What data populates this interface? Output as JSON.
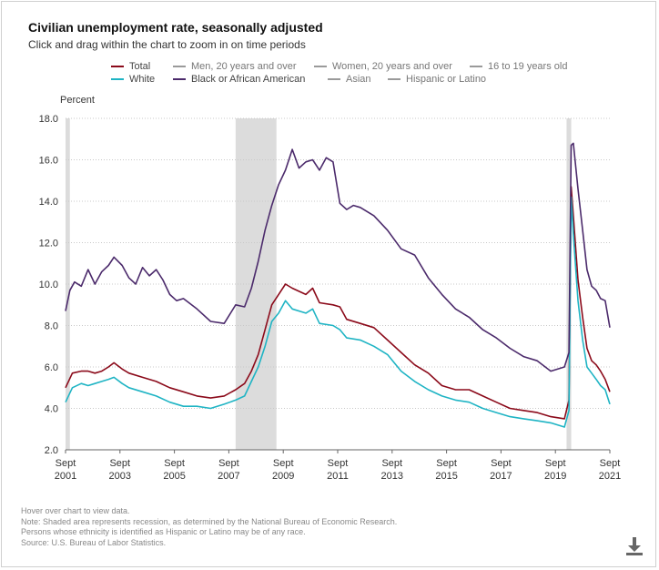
{
  "header": {
    "title": "Civilian unemployment rate, seasonally adjusted",
    "subtitle": "Click and drag within the chart to zoom in on time periods"
  },
  "legend": [
    {
      "label": "Total",
      "color": "#8b0a1a",
      "active": true
    },
    {
      "label": "Men, 20 years and over",
      "color": "#9a9a9a",
      "active": false
    },
    {
      "label": "Women, 20 years and over",
      "color": "#9a9a9a",
      "active": false
    },
    {
      "label": "16 to 19 years old",
      "color": "#9a9a9a",
      "active": false
    },
    {
      "label": "White",
      "color": "#1fb4c4",
      "active": true
    },
    {
      "label": "Black or African American",
      "color": "#4b2a6b",
      "active": true
    },
    {
      "label": "Asian",
      "color": "#9a9a9a",
      "active": false
    },
    {
      "label": "Hispanic or Latino",
      "color": "#9a9a9a",
      "active": false
    }
  ],
  "notes": {
    "line1": "Hover over chart to view data.",
    "line2": "Note: Shaded area represents recession, as determined by the National Bureau of Economic Research.",
    "line3": "Persons whose ethnicity is identified as Hispanic or Latino may be of any race.",
    "line4": "Source: U.S. Bureau of Labor Statistics."
  },
  "download_icon": "download-icon",
  "chart_data": {
    "type": "line",
    "ylabel": "Percent",
    "ylim": [
      2.0,
      18.0
    ],
    "xlim": [
      2001.67,
      2021.67
    ],
    "y_ticks": [
      "2.0",
      "4.0",
      "6.0",
      "8.0",
      "10.0",
      "12.0",
      "14.0",
      "16.0",
      "18.0"
    ],
    "x_ticks": [
      {
        "value": 2001.67,
        "line1": "Sept",
        "line2": "2001"
      },
      {
        "value": 2003.67,
        "line1": "Sept",
        "line2": "2003"
      },
      {
        "value": 2005.67,
        "line1": "Sept",
        "line2": "2005"
      },
      {
        "value": 2007.67,
        "line1": "Sept",
        "line2": "2007"
      },
      {
        "value": 2009.67,
        "line1": "Sept",
        "line2": "2009"
      },
      {
        "value": 2011.67,
        "line1": "Sept",
        "line2": "2011"
      },
      {
        "value": 2013.67,
        "line1": "Sept",
        "line2": "2013"
      },
      {
        "value": 2015.67,
        "line1": "Sept",
        "line2": "2015"
      },
      {
        "value": 2017.67,
        "line1": "Sept",
        "line2": "2017"
      },
      {
        "value": 2019.67,
        "line1": "Sept",
        "line2": "2019"
      },
      {
        "value": 2021.67,
        "line1": "Sept",
        "line2": "2021"
      }
    ],
    "recessions": [
      [
        2001.67,
        2001.83
      ],
      [
        2007.92,
        2009.42
      ],
      [
        2020.08,
        2020.25
      ]
    ],
    "grid": "horizontal dotted",
    "series": [
      {
        "name": "Total",
        "color": "#8b0a1a",
        "points": [
          [
            2001.67,
            5.0
          ],
          [
            2001.92,
            5.7
          ],
          [
            2002.25,
            5.8
          ],
          [
            2002.5,
            5.8
          ],
          [
            2002.75,
            5.7
          ],
          [
            2003.0,
            5.8
          ],
          [
            2003.25,
            6.0
          ],
          [
            2003.45,
            6.2
          ],
          [
            2003.75,
            5.9
          ],
          [
            2004.0,
            5.7
          ],
          [
            2004.5,
            5.5
          ],
          [
            2005.0,
            5.3
          ],
          [
            2005.5,
            5.0
          ],
          [
            2006.0,
            4.8
          ],
          [
            2006.5,
            4.6
          ],
          [
            2007.0,
            4.5
          ],
          [
            2007.5,
            4.6
          ],
          [
            2007.92,
            4.9
          ],
          [
            2008.25,
            5.2
          ],
          [
            2008.5,
            5.8
          ],
          [
            2008.75,
            6.6
          ],
          [
            2009.0,
            7.8
          ],
          [
            2009.25,
            9.0
          ],
          [
            2009.5,
            9.5
          ],
          [
            2009.75,
            10.0
          ],
          [
            2010.0,
            9.8
          ],
          [
            2010.5,
            9.5
          ],
          [
            2010.75,
            9.8
          ],
          [
            2011.0,
            9.1
          ],
          [
            2011.5,
            9.0
          ],
          [
            2011.75,
            8.9
          ],
          [
            2012.0,
            8.3
          ],
          [
            2012.5,
            8.1
          ],
          [
            2013.0,
            7.9
          ],
          [
            2013.5,
            7.3
          ],
          [
            2014.0,
            6.7
          ],
          [
            2014.5,
            6.1
          ],
          [
            2015.0,
            5.7
          ],
          [
            2015.5,
            5.1
          ],
          [
            2016.0,
            4.9
          ],
          [
            2016.5,
            4.9
          ],
          [
            2017.0,
            4.6
          ],
          [
            2017.5,
            4.3
          ],
          [
            2018.0,
            4.0
          ],
          [
            2018.5,
            3.9
          ],
          [
            2019.0,
            3.8
          ],
          [
            2019.5,
            3.6
          ],
          [
            2020.0,
            3.5
          ],
          [
            2020.17,
            4.4
          ],
          [
            2020.25,
            14.7
          ],
          [
            2020.33,
            13.3
          ],
          [
            2020.5,
            10.2
          ],
          [
            2020.67,
            8.4
          ],
          [
            2020.83,
            6.9
          ],
          [
            2021.0,
            6.3
          ],
          [
            2021.17,
            6.1
          ],
          [
            2021.33,
            5.8
          ],
          [
            2021.5,
            5.4
          ],
          [
            2021.67,
            4.8
          ]
        ]
      },
      {
        "name": "White",
        "color": "#1fb4c4",
        "points": [
          [
            2001.67,
            4.3
          ],
          [
            2001.92,
            5.0
          ],
          [
            2002.25,
            5.2
          ],
          [
            2002.5,
            5.1
          ],
          [
            2002.75,
            5.2
          ],
          [
            2003.0,
            5.3
          ],
          [
            2003.25,
            5.4
          ],
          [
            2003.45,
            5.5
          ],
          [
            2003.75,
            5.2
          ],
          [
            2004.0,
            5.0
          ],
          [
            2004.5,
            4.8
          ],
          [
            2005.0,
            4.6
          ],
          [
            2005.5,
            4.3
          ],
          [
            2006.0,
            4.1
          ],
          [
            2006.5,
            4.1
          ],
          [
            2007.0,
            4.0
          ],
          [
            2007.5,
            4.2
          ],
          [
            2007.92,
            4.4
          ],
          [
            2008.25,
            4.6
          ],
          [
            2008.5,
            5.3
          ],
          [
            2008.75,
            6.0
          ],
          [
            2009.0,
            7.0
          ],
          [
            2009.25,
            8.2
          ],
          [
            2009.5,
            8.6
          ],
          [
            2009.75,
            9.2
          ],
          [
            2010.0,
            8.8
          ],
          [
            2010.5,
            8.6
          ],
          [
            2010.75,
            8.8
          ],
          [
            2011.0,
            8.1
          ],
          [
            2011.5,
            8.0
          ],
          [
            2011.75,
            7.8
          ],
          [
            2012.0,
            7.4
          ],
          [
            2012.5,
            7.3
          ],
          [
            2013.0,
            7.0
          ],
          [
            2013.5,
            6.6
          ],
          [
            2014.0,
            5.8
          ],
          [
            2014.5,
            5.3
          ],
          [
            2015.0,
            4.9
          ],
          [
            2015.5,
            4.6
          ],
          [
            2016.0,
            4.4
          ],
          [
            2016.5,
            4.3
          ],
          [
            2017.0,
            4.0
          ],
          [
            2017.5,
            3.8
          ],
          [
            2018.0,
            3.6
          ],
          [
            2018.5,
            3.5
          ],
          [
            2019.0,
            3.4
          ],
          [
            2019.5,
            3.3
          ],
          [
            2020.0,
            3.1
          ],
          [
            2020.17,
            3.9
          ],
          [
            2020.25,
            14.2
          ],
          [
            2020.33,
            12.4
          ],
          [
            2020.5,
            9.2
          ],
          [
            2020.67,
            7.3
          ],
          [
            2020.83,
            6.0
          ],
          [
            2021.0,
            5.7
          ],
          [
            2021.17,
            5.4
          ],
          [
            2021.33,
            5.1
          ],
          [
            2021.5,
            4.9
          ],
          [
            2021.67,
            4.2
          ]
        ]
      },
      {
        "name": "Black or African American",
        "color": "#4b2a6b",
        "points": [
          [
            2001.67,
            8.7
          ],
          [
            2001.83,
            9.7
          ],
          [
            2002.0,
            10.1
          ],
          [
            2002.25,
            9.9
          ],
          [
            2002.5,
            10.7
          ],
          [
            2002.75,
            10.0
          ],
          [
            2003.0,
            10.6
          ],
          [
            2003.25,
            10.9
          ],
          [
            2003.45,
            11.3
          ],
          [
            2003.75,
            10.9
          ],
          [
            2004.0,
            10.3
          ],
          [
            2004.25,
            10.0
          ],
          [
            2004.5,
            10.8
          ],
          [
            2004.75,
            10.4
          ],
          [
            2005.0,
            10.7
          ],
          [
            2005.25,
            10.2
          ],
          [
            2005.5,
            9.5
          ],
          [
            2005.75,
            9.2
          ],
          [
            2006.0,
            9.3
          ],
          [
            2006.5,
            8.8
          ],
          [
            2007.0,
            8.2
          ],
          [
            2007.5,
            8.1
          ],
          [
            2007.92,
            9.0
          ],
          [
            2008.25,
            8.9
          ],
          [
            2008.5,
            9.8
          ],
          [
            2008.75,
            11.1
          ],
          [
            2009.0,
            12.6
          ],
          [
            2009.25,
            13.8
          ],
          [
            2009.5,
            14.8
          ],
          [
            2009.75,
            15.5
          ],
          [
            2010.0,
            16.5
          ],
          [
            2010.25,
            15.6
          ],
          [
            2010.5,
            15.9
          ],
          [
            2010.75,
            16.0
          ],
          [
            2011.0,
            15.5
          ],
          [
            2011.25,
            16.1
          ],
          [
            2011.5,
            15.9
          ],
          [
            2011.75,
            13.9
          ],
          [
            2012.0,
            13.6
          ],
          [
            2012.25,
            13.8
          ],
          [
            2012.5,
            13.7
          ],
          [
            2013.0,
            13.3
          ],
          [
            2013.5,
            12.6
          ],
          [
            2014.0,
            11.7
          ],
          [
            2014.5,
            11.4
          ],
          [
            2015.0,
            10.3
          ],
          [
            2015.5,
            9.5
          ],
          [
            2016.0,
            8.8
          ],
          [
            2016.5,
            8.4
          ],
          [
            2017.0,
            7.8
          ],
          [
            2017.5,
            7.4
          ],
          [
            2018.0,
            6.9
          ],
          [
            2018.5,
            6.5
          ],
          [
            2019.0,
            6.3
          ],
          [
            2019.5,
            5.8
          ],
          [
            2020.0,
            6.0
          ],
          [
            2020.17,
            6.7
          ],
          [
            2020.25,
            16.7
          ],
          [
            2020.33,
            16.8
          ],
          [
            2020.5,
            14.6
          ],
          [
            2020.67,
            12.6
          ],
          [
            2020.83,
            10.7
          ],
          [
            2021.0,
            9.9
          ],
          [
            2021.17,
            9.7
          ],
          [
            2021.33,
            9.3
          ],
          [
            2021.5,
            9.2
          ],
          [
            2021.67,
            7.9
          ]
        ]
      }
    ]
  }
}
